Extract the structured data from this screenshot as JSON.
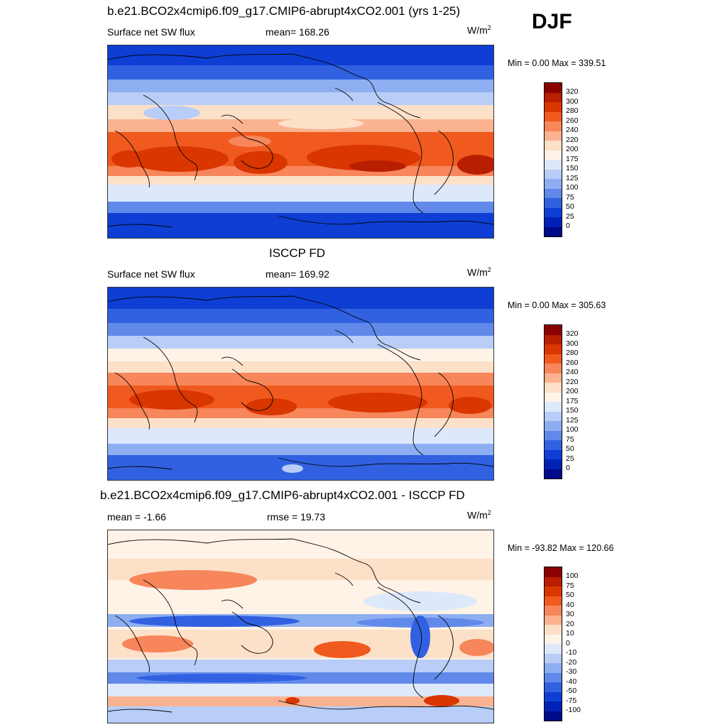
{
  "season": "DJF",
  "panels": [
    {
      "id": "model",
      "title": "b.e21.BCO2x4cmip6.f09_g17.CMIP6-abrupt4xCO2.001 (yrs 1-25)",
      "left_label": "Surface net SW flux",
      "center_label": "mean= 168.26",
      "units_base": "W/m",
      "units_exp": "2",
      "minmax": "Min =   0.00 Max = 339.51",
      "colorbar_labels": [
        "320",
        "300",
        "280",
        "260",
        "240",
        "220",
        "200",
        "175",
        "150",
        "125",
        "100",
        "75",
        "50",
        "25",
        "0"
      ]
    },
    {
      "id": "obs",
      "title": "ISCCP FD",
      "left_label": "Surface net SW flux",
      "center_label": "mean= 169.92",
      "units_base": "W/m",
      "units_exp": "2",
      "minmax": "Min =   0.00 Max = 305.63",
      "colorbar_labels": [
        "320",
        "300",
        "280",
        "260",
        "240",
        "220",
        "200",
        "175",
        "150",
        "125",
        "100",
        "75",
        "50",
        "25",
        "0"
      ]
    },
    {
      "id": "diff",
      "title": "b.e21.BCO2x4cmip6.f09_g17.CMIP6-abrupt4xCO2.001 - ISCCP FD",
      "left_label": "mean =  -1.66",
      "center_label": "rmse =  19.73",
      "units_base": "W/m",
      "units_exp": "2",
      "minmax": "Min = -93.82 Max = 120.66",
      "colorbar_labels": [
        "100",
        "75",
        "50",
        "40",
        "30",
        "20",
        "10",
        "0",
        "-10",
        "-20",
        "-30",
        "-40",
        "-50",
        "-75",
        "-100"
      ]
    }
  ],
  "colors": {
    "seq": [
      "#8b0000",
      "#b81e00",
      "#d93600",
      "#f05a1e",
      "#f7865a",
      "#fbb290",
      "#fde0c8",
      "#fef3e6",
      "#dde8fb",
      "#b8cdf7",
      "#8eaef2",
      "#6089ea",
      "#3161e0",
      "#0e3ed3",
      "#0021b5",
      "#000b8a"
    ],
    "ocean_base": "#dde8fb",
    "land_line": "#000000"
  },
  "legend": {
    "frame": "#000000"
  }
}
